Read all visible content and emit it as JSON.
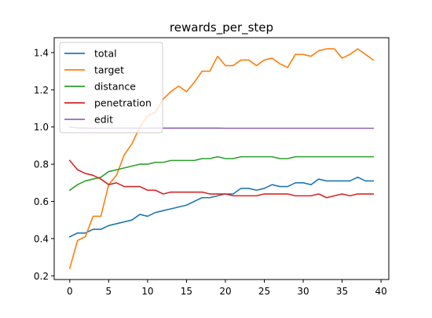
{
  "chart_data": {
    "type": "line",
    "title": "rewards_per_step",
    "xlabel": "",
    "ylabel": "",
    "xlim": [
      -2,
      41
    ],
    "ylim": [
      0.18,
      1.48
    ],
    "xticks": [
      0,
      5,
      10,
      15,
      20,
      25,
      30,
      35,
      40
    ],
    "xtick_labels": [
      "0",
      "5",
      "10",
      "15",
      "20",
      "25",
      "30",
      "35",
      "40"
    ],
    "yticks": [
      0.2,
      0.4,
      0.6,
      0.8,
      1.0,
      1.2,
      1.4
    ],
    "ytick_labels": [
      "0.2",
      "0.4",
      "0.6",
      "0.8",
      "1.0",
      "1.2",
      "1.4"
    ],
    "grid": false,
    "legend_position": "upper-left",
    "x": [
      0,
      1,
      2,
      3,
      4,
      5,
      6,
      7,
      8,
      9,
      10,
      11,
      12,
      13,
      14,
      15,
      16,
      17,
      18,
      19,
      20,
      21,
      22,
      23,
      24,
      25,
      26,
      27,
      28,
      29,
      30,
      31,
      32,
      33,
      34,
      35,
      36,
      37,
      38,
      39
    ],
    "series": [
      {
        "name": "total",
        "color": "#1f77b4",
        "values": [
          0.41,
          0.43,
          0.43,
          0.45,
          0.45,
          0.47,
          0.48,
          0.49,
          0.5,
          0.53,
          0.52,
          0.54,
          0.55,
          0.56,
          0.57,
          0.58,
          0.6,
          0.62,
          0.62,
          0.63,
          0.64,
          0.64,
          0.67,
          0.67,
          0.66,
          0.67,
          0.69,
          0.68,
          0.68,
          0.7,
          0.7,
          0.69,
          0.72,
          0.71,
          0.71,
          0.71,
          0.71,
          0.73,
          0.71,
          0.71
        ]
      },
      {
        "name": "target",
        "color": "#ff7f0e",
        "values": [
          0.24,
          0.39,
          0.41,
          0.52,
          0.52,
          0.69,
          0.74,
          0.85,
          0.91,
          1.0,
          1.06,
          1.08,
          1.15,
          1.19,
          1.22,
          1.19,
          1.24,
          1.3,
          1.3,
          1.38,
          1.33,
          1.33,
          1.36,
          1.36,
          1.33,
          1.36,
          1.37,
          1.34,
          1.32,
          1.39,
          1.39,
          1.38,
          1.41,
          1.42,
          1.42,
          1.37,
          1.39,
          1.42,
          1.39,
          1.36
        ]
      },
      {
        "name": "distance",
        "color": "#2ca02c",
        "values": [
          0.66,
          0.69,
          0.71,
          0.72,
          0.73,
          0.76,
          0.77,
          0.78,
          0.79,
          0.8,
          0.8,
          0.81,
          0.81,
          0.82,
          0.82,
          0.82,
          0.82,
          0.83,
          0.83,
          0.84,
          0.83,
          0.83,
          0.84,
          0.84,
          0.84,
          0.84,
          0.84,
          0.83,
          0.83,
          0.84,
          0.84,
          0.84,
          0.84,
          0.84,
          0.84,
          0.84,
          0.84,
          0.84,
          0.84,
          0.84
        ]
      },
      {
        "name": "penetration",
        "color": "#d62728",
        "values": [
          0.82,
          0.77,
          0.75,
          0.74,
          0.72,
          0.69,
          0.7,
          0.68,
          0.68,
          0.68,
          0.66,
          0.66,
          0.64,
          0.65,
          0.65,
          0.65,
          0.65,
          0.65,
          0.64,
          0.64,
          0.64,
          0.63,
          0.63,
          0.63,
          0.63,
          0.64,
          0.64,
          0.64,
          0.64,
          0.63,
          0.63,
          0.63,
          0.64,
          0.62,
          0.63,
          0.64,
          0.63,
          0.64,
          0.64,
          0.64
        ]
      },
      {
        "name": "edit",
        "color": "#9467bd",
        "values": [
          1.0,
          0.995,
          0.994,
          0.994,
          0.994,
          0.994,
          0.994,
          0.994,
          0.994,
          0.994,
          0.994,
          0.994,
          0.994,
          0.994,
          0.994,
          0.994,
          0.994,
          0.994,
          0.994,
          0.994,
          0.993,
          0.993,
          0.993,
          0.993,
          0.993,
          0.993,
          0.993,
          0.993,
          0.993,
          0.993,
          0.993,
          0.993,
          0.993,
          0.993,
          0.993,
          0.993,
          0.993,
          0.993,
          0.993,
          0.993
        ]
      }
    ]
  }
}
